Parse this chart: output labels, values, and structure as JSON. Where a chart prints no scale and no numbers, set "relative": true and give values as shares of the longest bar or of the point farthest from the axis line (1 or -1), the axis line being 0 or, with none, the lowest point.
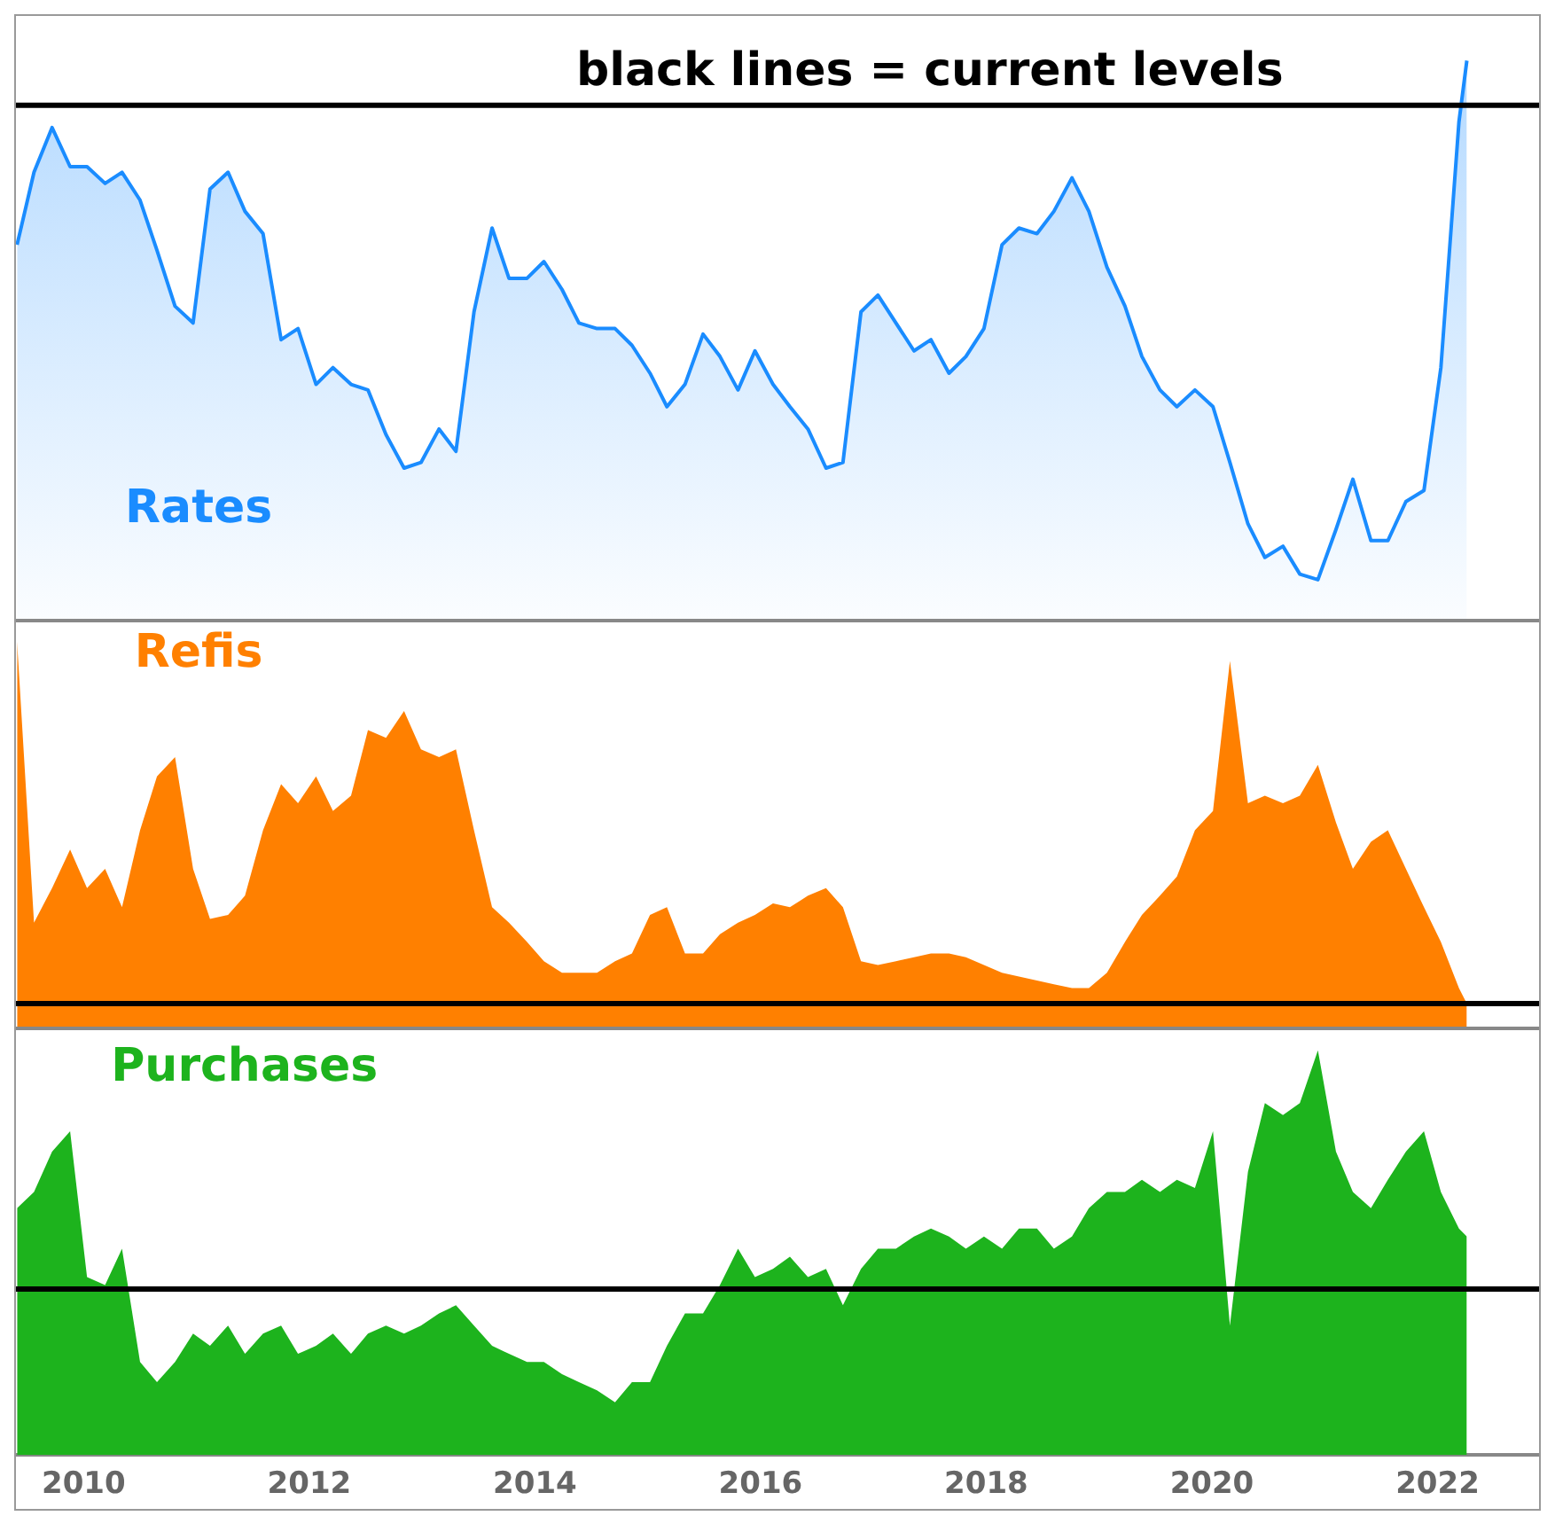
{
  "chart_data": [
    {
      "type": "area",
      "relative": true,
      "annotations": [
        "black lines = current levels"
      ],
      "tick_labels": false,
      "xlim": [
        2009.4,
        2022.9
      ],
      "x": [
        2009.41,
        2009.56,
        2009.72,
        2009.88,
        2010.03,
        2010.19,
        2010.34,
        2010.5,
        2010.65,
        2010.81,
        2010.97,
        2011.12,
        2011.28,
        2011.43,
        2011.59,
        2011.75,
        2011.9,
        2012.06,
        2012.21,
        2012.37,
        2012.52,
        2012.68,
        2012.84,
        2012.99,
        2013.15,
        2013.3,
        2013.46,
        2013.62,
        2013.77,
        2013.93,
        2014.08,
        2014.24,
        2014.39,
        2014.55,
        2014.71,
        2014.86,
        2015.02,
        2015.17,
        2015.33,
        2015.49,
        2015.64,
        2015.8,
        2015.95,
        2016.11,
        2016.26,
        2016.42,
        2016.58,
        2016.73,
        2016.89,
        2017.04,
        2017.2,
        2017.36,
        2017.51,
        2017.67,
        2017.82,
        2017.98,
        2018.14,
        2018.29,
        2018.45,
        2018.6,
        2018.76,
        2018.91,
        2019.07,
        2019.23,
        2019.38,
        2019.54,
        2019.69,
        2019.85,
        2020.01,
        2020.16,
        2020.32,
        2020.47,
        2020.63,
        2020.78,
        2020.94,
        2021.1,
        2021.25,
        2021.41,
        2021.56,
        2021.72,
        2021.88,
        2022.03,
        2022.19,
        2022.26
      ],
      "series": [
        {
          "name": "Rates",
          "color": "#1a8cff",
          "values": [
            0.67,
            0.8,
            0.88,
            0.81,
            0.81,
            0.78,
            0.8,
            0.75,
            0.66,
            0.56,
            0.53,
            0.77,
            0.8,
            0.73,
            0.69,
            0.5,
            0.52,
            0.42,
            0.45,
            0.42,
            0.41,
            0.33,
            0.27,
            0.28,
            0.34,
            0.3,
            0.55,
            0.7,
            0.61,
            0.61,
            0.64,
            0.59,
            0.53,
            0.52,
            0.52,
            0.49,
            0.44,
            0.38,
            0.42,
            0.51,
            0.47,
            0.41,
            0.48,
            0.42,
            0.38,
            0.34,
            0.27,
            0.28,
            0.55,
            0.58,
            0.53,
            0.48,
            0.5,
            0.44,
            0.47,
            0.52,
            0.67,
            0.7,
            0.69,
            0.73,
            0.79,
            0.73,
            0.63,
            0.56,
            0.47,
            0.41,
            0.38,
            0.41,
            0.38,
            0.28,
            0.17,
            0.11,
            0.13,
            0.08,
            0.07,
            0.16,
            0.25,
            0.14,
            0.14,
            0.21,
            0.23,
            0.45,
            0.89,
            1
          ]
        }
      ],
      "ref_lines": [
        {
          "axis": "y",
          "value": 0.92,
          "color": "#000000"
        }
      ]
    },
    {
      "type": "area",
      "relative": true,
      "tick_labels": false,
      "xlim": [
        2009.4,
        2022.9
      ],
      "x": [
        2009.41,
        2009.56,
        2009.72,
        2009.88,
        2010.03,
        2010.19,
        2010.34,
        2010.5,
        2010.65,
        2010.81,
        2010.97,
        2011.12,
        2011.28,
        2011.43,
        2011.59,
        2011.75,
        2011.9,
        2012.06,
        2012.21,
        2012.37,
        2012.52,
        2012.68,
        2012.84,
        2012.99,
        2013.15,
        2013.3,
        2013.46,
        2013.62,
        2013.77,
        2013.93,
        2014.08,
        2014.24,
        2014.39,
        2014.55,
        2014.71,
        2014.86,
        2015.02,
        2015.17,
        2015.33,
        2015.49,
        2015.64,
        2015.8,
        2015.95,
        2016.11,
        2016.26,
        2016.42,
        2016.58,
        2016.73,
        2016.89,
        2017.04,
        2017.2,
        2017.36,
        2017.51,
        2017.67,
        2017.82,
        2017.98,
        2018.14,
        2018.29,
        2018.45,
        2018.6,
        2018.76,
        2018.91,
        2019.07,
        2019.23,
        2019.38,
        2019.54,
        2019.69,
        2019.85,
        2020.01,
        2020.16,
        2020.32,
        2020.47,
        2020.63,
        2020.78,
        2020.94,
        2021.1,
        2021.25,
        2021.41,
        2021.56,
        2021.72,
        2021.88,
        2022.03,
        2022.19,
        2022.26
      ],
      "series": [
        {
          "name": "Refis",
          "color": "#ff8000",
          "values": [
            1,
            0.27,
            0.36,
            0.46,
            0.36,
            0.41,
            0.31,
            0.51,
            0.65,
            0.7,
            0.41,
            0.28,
            0.29,
            0.34,
            0.51,
            0.63,
            0.58,
            0.65,
            0.56,
            0.6,
            0.77,
            0.75,
            0.82,
            0.72,
            0.7,
            0.72,
            0.51,
            0.31,
            0.27,
            0.22,
            0.17,
            0.14,
            0.14,
            0.14,
            0.17,
            0.19,
            0.29,
            0.31,
            0.19,
            0.19,
            0.24,
            0.27,
            0.29,
            0.32,
            0.31,
            0.34,
            0.36,
            0.31,
            0.17,
            0.16,
            0.17,
            0.18,
            0.19,
            0.19,
            0.18,
            0.16,
            0.14,
            0.13,
            0.12,
            0.11,
            0.1,
            0.1,
            0.14,
            0.22,
            0.29,
            0.34,
            0.39,
            0.51,
            0.56,
            0.95,
            0.58,
            0.6,
            0.58,
            0.6,
            0.68,
            0.53,
            0.41,
            0.48,
            0.51,
            0.41,
            0.31,
            0.22,
            0.1,
            0.06
          ]
        }
      ],
      "ref_lines": [
        {
          "axis": "y",
          "value": 0.06,
          "color": "#000000"
        }
      ]
    },
    {
      "type": "area",
      "relative": true,
      "tick_labels": "x",
      "xlim": [
        2009.4,
        2022.9
      ],
      "xticks": [
        2010,
        2012,
        2014,
        2016,
        2018,
        2020,
        2022
      ],
      "x": [
        2009.41,
        2009.56,
        2009.72,
        2009.88,
        2010.03,
        2010.19,
        2010.34,
        2010.5,
        2010.65,
        2010.81,
        2010.97,
        2011.12,
        2011.28,
        2011.43,
        2011.59,
        2011.75,
        2011.9,
        2012.06,
        2012.21,
        2012.37,
        2012.52,
        2012.68,
        2012.84,
        2012.99,
        2013.15,
        2013.3,
        2013.46,
        2013.62,
        2013.77,
        2013.93,
        2014.08,
        2014.24,
        2014.39,
        2014.55,
        2014.71,
        2014.86,
        2015.02,
        2015.17,
        2015.33,
        2015.49,
        2015.64,
        2015.8,
        2015.95,
        2016.11,
        2016.26,
        2016.42,
        2016.58,
        2016.73,
        2016.89,
        2017.04,
        2017.2,
        2017.36,
        2017.51,
        2017.67,
        2017.82,
        2017.98,
        2018.14,
        2018.29,
        2018.45,
        2018.6,
        2018.76,
        2018.91,
        2019.07,
        2019.23,
        2019.38,
        2019.54,
        2019.69,
        2019.85,
        2020.01,
        2020.16,
        2020.32,
        2020.47,
        2020.63,
        2020.78,
        2020.94,
        2021.1,
        2021.25,
        2021.41,
        2021.56,
        2021.72,
        2021.88,
        2022.03,
        2022.19,
        2022.26
      ],
      "series": [
        {
          "name": "Purchases",
          "color": "#1db31d",
          "values": [
            0.61,
            0.65,
            0.75,
            0.8,
            0.44,
            0.42,
            0.51,
            0.23,
            0.18,
            0.23,
            0.3,
            0.27,
            0.32,
            0.25,
            0.3,
            0.32,
            0.25,
            0.27,
            0.3,
            0.25,
            0.3,
            0.32,
            0.3,
            0.32,
            0.35,
            0.37,
            0.32,
            0.27,
            0.25,
            0.23,
            0.23,
            0.2,
            0.18,
            0.16,
            0.13,
            0.18,
            0.18,
            0.27,
            0.35,
            0.35,
            0.42,
            0.51,
            0.44,
            0.46,
            0.49,
            0.44,
            0.46,
            0.37,
            0.46,
            0.51,
            0.51,
            0.54,
            0.56,
            0.54,
            0.51,
            0.54,
            0.51,
            0.56,
            0.56,
            0.51,
            0.54,
            0.61,
            0.65,
            0.65,
            0.68,
            0.65,
            0.68,
            0.66,
            0.8,
            0.32,
            0.7,
            0.87,
            0.84,
            0.87,
            1,
            0.75,
            0.65,
            0.61,
            0.68,
            0.75,
            0.8,
            0.65,
            0.56,
            0.54
          ]
        }
      ],
      "ref_lines": [
        {
          "axis": "y",
          "value": 0.41,
          "color": "#000000"
        }
      ]
    }
  ]
}
